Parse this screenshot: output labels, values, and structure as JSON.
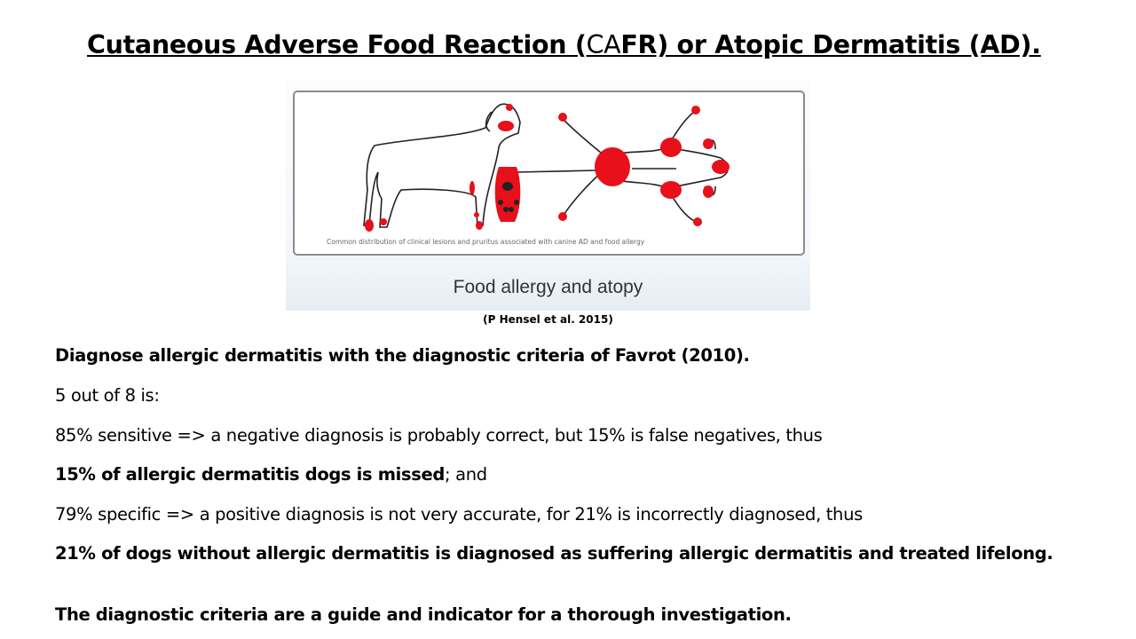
{
  "title": {
    "part1": "Cutaneous Adverse Food Reaction (",
    "part2": "CA",
    "part3": "FR) or Atopic Dermatitis (AD)."
  },
  "figure": {
    "caption_small": "Common distribution of clinical lesions and pruritus associated with canine AD and food allergy",
    "title": "Food allergy and atopy",
    "lesion_color": "#e8101a"
  },
  "citation": "(P Hensel et al. 2015)",
  "body": {
    "line1": "Diagnose allergic dermatitis with the diagnostic criteria of Favrot (2010).",
    "line2": "5 out of 8 is:",
    "line3": "85% sensitive => a negative diagnosis is probably correct, but 15% is false negatives, thus",
    "line4_bold": "15% of allergic dermatitis dogs is missed",
    "line4_rest": "; and",
    "line5": "79% specific => a positive diagnosis is not very accurate, for 21% is incorrectly diagnosed, thus",
    "line6": "21% of dogs without allergic dermatitis is diagnosed as suffering allergic dermatitis and treated lifelong.",
    "line7": "The diagnostic criteria are a guide and indicator for a thorough investigation."
  }
}
